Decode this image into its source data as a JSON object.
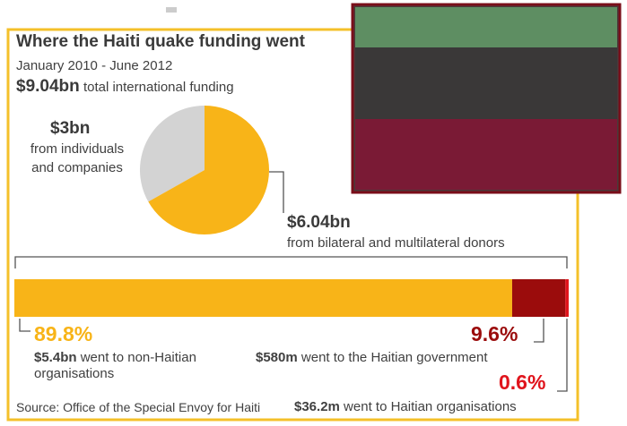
{
  "chart_data": [
    {
      "type": "pie",
      "title": "Where the Haiti quake funding went",
      "subtitle": "January 2010 - June 2012",
      "total_label": "$9.04bn",
      "total_text": "total international funding",
      "values": [
        3,
        6.04
      ],
      "value_labels": [
        "$3bn",
        "$6.04bn"
      ],
      "labels": [
        "from individuals and companies",
        "from bilateral and multilateral donors"
      ],
      "colors": [
        "#d3d3d3",
        "#f8b418"
      ]
    },
    {
      "type": "stacked-bar",
      "values": [
        89.8,
        9.6,
        0.6
      ],
      "value_labels": [
        "89.8%",
        "9.6%",
        "0.6%"
      ],
      "amounts": [
        "$5.4bn",
        "$580m",
        "$36.2m"
      ],
      "descriptions": [
        "went to non-Haitian organisations",
        "went to the Haitian government",
        "went to Haitian organisations"
      ],
      "colors": [
        "#f8b418",
        "#9b0c0c",
        "#e0141c"
      ],
      "source": "Source: Office of the Special Envoy for Haiti"
    }
  ]
}
